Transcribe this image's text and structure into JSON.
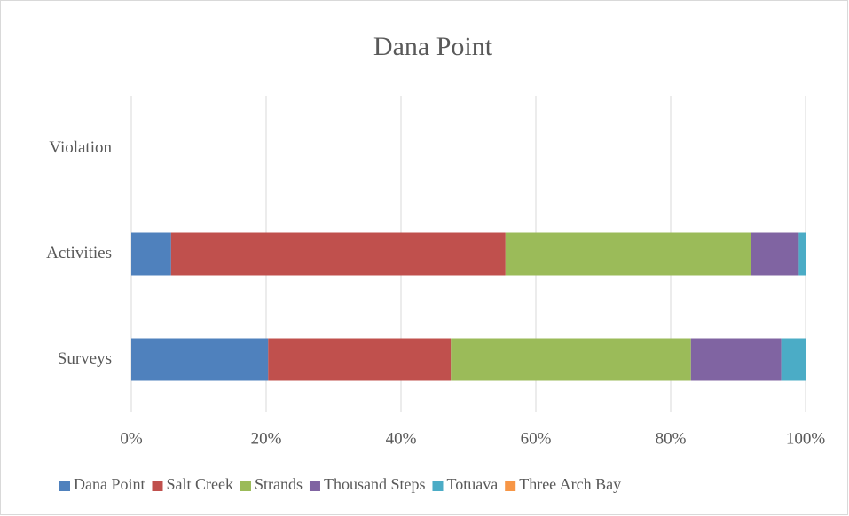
{
  "chart_data": {
    "type": "stacked-bar-horizontal",
    "title": "Dana Point",
    "categories": [
      "Surveys",
      "Activities",
      "Violation"
    ],
    "series": [
      {
        "name": "Dana Point",
        "color": "#4f81bd",
        "values": [
          20.3,
          5.9,
          0
        ]
      },
      {
        "name": "Salt Creek",
        "color": "#c0504d",
        "values": [
          27.1,
          49.6,
          0
        ]
      },
      {
        "name": "Strands",
        "color": "#9bbb59",
        "values": [
          35.6,
          36.4,
          0
        ]
      },
      {
        "name": "Thousand Steps",
        "color": "#8064a2",
        "values": [
          13.4,
          7.1,
          0
        ]
      },
      {
        "name": "Totuava",
        "color": "#4bacc6",
        "values": [
          3.6,
          1.0,
          0
        ]
      },
      {
        "name": "Three Arch Bay",
        "color": "#f79646",
        "values": [
          0,
          0,
          0
        ]
      }
    ],
    "xlim": [
      0,
      100
    ],
    "xticks": [
      {
        "value": 0,
        "label": "0%"
      },
      {
        "value": 20,
        "label": "20%"
      },
      {
        "value": 40,
        "label": "40%"
      },
      {
        "value": 60,
        "label": "60%"
      },
      {
        "value": 80,
        "label": "80%"
      },
      {
        "value": 100,
        "label": "100%"
      }
    ],
    "grid": true,
    "legend": "bottom"
  }
}
